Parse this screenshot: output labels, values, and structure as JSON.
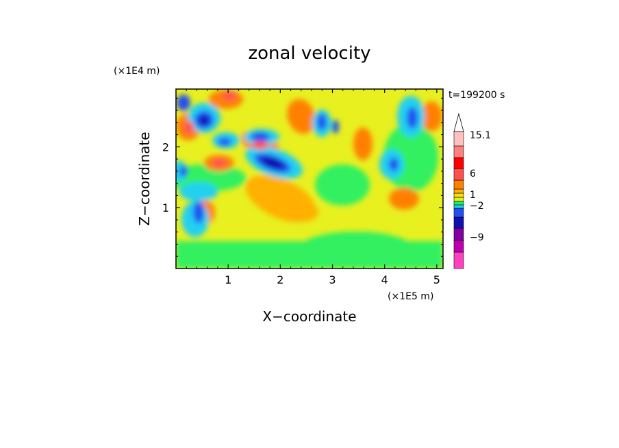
{
  "chart_data": {
    "type": "heatmap",
    "title": "zonal velocity",
    "xlabel": "X−coordinate",
    "ylabel": "Z−coordinate",
    "x_unit": "(×1E5 m)",
    "y_unit": "(×1E4 m)",
    "time_label": "t=199200 s",
    "xlim": [
      0,
      5.12
    ],
    "ylim": [
      0,
      2.95
    ],
    "x_ticks": [
      {
        "value": 1,
        "label": "1"
      },
      {
        "value": 2,
        "label": "2"
      },
      {
        "value": 3,
        "label": "3"
      },
      {
        "value": 4,
        "label": "4"
      },
      {
        "value": 5,
        "label": "5"
      }
    ],
    "y_ticks": [
      {
        "value": 1,
        "label": "1"
      },
      {
        "value": 2,
        "label": "2"
      }
    ],
    "colorbar": {
      "levels": [
        {
          "color": "#ff40c0"
        },
        {
          "color": "#c000b0"
        },
        {
          "color": "#8000a0"
        },
        {
          "color": "#1010b0"
        },
        {
          "color": "#2050f0"
        },
        {
          "color": "#20d0f0"
        },
        {
          "color": "#20f060"
        },
        {
          "color": "#e0f020"
        },
        {
          "color": "#ffe000"
        },
        {
          "color": "#ffb000"
        },
        {
          "color": "#ff8000"
        },
        {
          "color": "#ff5050"
        },
        {
          "color": "#ff0000"
        },
        {
          "color": "#ff8080"
        },
        {
          "color": "#ffc0c0"
        }
      ],
      "labels": [
        "15.1",
        "6",
        "1",
        "−2",
        "−9"
      ]
    },
    "features": [
      {
        "x": 0.5,
        "z": 2.5,
        "value": -8
      },
      {
        "x": 1.9,
        "z": 1.75,
        "value": -9
      },
      {
        "x": 1.4,
        "z": 2.0,
        "value": 6
      },
      {
        "x": 2.2,
        "z": 1.0,
        "value": 3
      },
      {
        "x": 4.0,
        "z": 1.0,
        "value": 1
      }
    ],
    "grid": false
  }
}
